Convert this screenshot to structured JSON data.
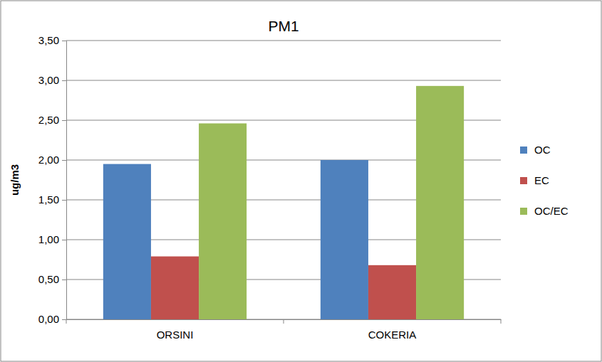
{
  "chart_data": {
    "type": "bar",
    "title": "PM1",
    "y_label": "ug/m3",
    "categories": [
      "ORSINI",
      "COKERIA"
    ],
    "series": [
      {
        "name": "OC",
        "color": "#4f81bd",
        "values": [
          1.95,
          2.0
        ]
      },
      {
        "name": "EC",
        "color": "#c0504d",
        "values": [
          0.79,
          0.68
        ]
      },
      {
        "name": "OC/EC",
        "color": "#9bbb59",
        "values": [
          2.46,
          2.93
        ]
      }
    ],
    "ylim": [
      0,
      3.5
    ],
    "yticks": [
      {
        "value": 0,
        "label": "0,00"
      },
      {
        "value": 0.5,
        "label": "0,50"
      },
      {
        "value": 1,
        "label": "1,00"
      },
      {
        "value": 1.5,
        "label": "1,50"
      },
      {
        "value": 2,
        "label": "2,00"
      },
      {
        "value": 2.5,
        "label": "2,50"
      },
      {
        "value": 3,
        "label": "3,00"
      },
      {
        "value": 3.5,
        "label": "3,50"
      }
    ],
    "grid": true,
    "legend": "right"
  }
}
